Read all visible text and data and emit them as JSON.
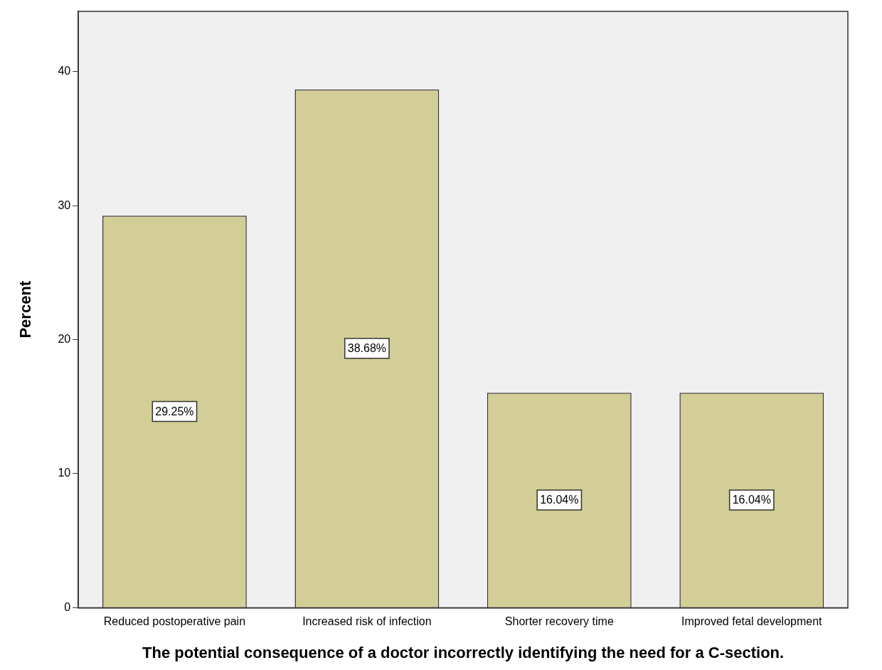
{
  "chart_data": {
    "type": "bar",
    "xlabel": "The potential consequence of a doctor incorrectly identifying the need for a C-section.",
    "ylabel": "Percent",
    "categories": [
      "Reduced postoperative pain",
      "Increased risk of infection",
      "Shorter recovery time",
      "Improved fetal development"
    ],
    "values": [
      29.25,
      38.68,
      16.04,
      16.04
    ],
    "color": "#d3ce97",
    "value_labels": [
      "29.25%",
      "38.68%",
      "16.04%",
      "16.04%"
    ],
    "ylim": [
      0,
      44.5
    ],
    "yticks": [
      0,
      10,
      20,
      30,
      40
    ],
    "grid": false,
    "legend": false
  }
}
